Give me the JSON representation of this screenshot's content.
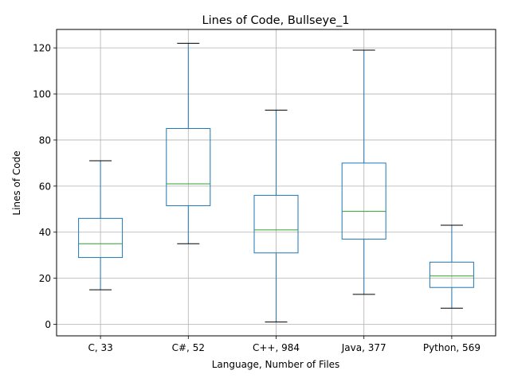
{
  "chart_data": {
    "type": "box",
    "title": "Lines of Code, Bullseye_1",
    "xlabel": "Language, Number of Files",
    "ylabel": "Lines of Code",
    "ylim": [
      -5,
      128
    ],
    "yticks": [
      0,
      20,
      40,
      60,
      80,
      100,
      120
    ],
    "grid": true,
    "categories": [
      "C, 33",
      "C#, 52",
      "C++, 984",
      "Java, 377",
      "Python, 569"
    ],
    "boxes": [
      {
        "whisker_low": 15,
        "q1": 29,
        "median": 35,
        "q3": 46,
        "whisker_high": 71
      },
      {
        "whisker_low": 35,
        "q1": 51.5,
        "median": 61,
        "q3": 85,
        "whisker_high": 122
      },
      {
        "whisker_low": 1,
        "q1": 31,
        "median": 41,
        "q3": 56,
        "whisker_high": 93
      },
      {
        "whisker_low": 13,
        "q1": 37,
        "median": 49,
        "q3": 70,
        "whisker_high": 119
      },
      {
        "whisker_low": 7,
        "q1": 16,
        "median": 21,
        "q3": 27,
        "whisker_high": 43
      }
    ],
    "colors": {
      "box": "#1f77b4",
      "median": "#2ca02c",
      "cap": "#000000",
      "grid": "#b0b0b0"
    }
  }
}
